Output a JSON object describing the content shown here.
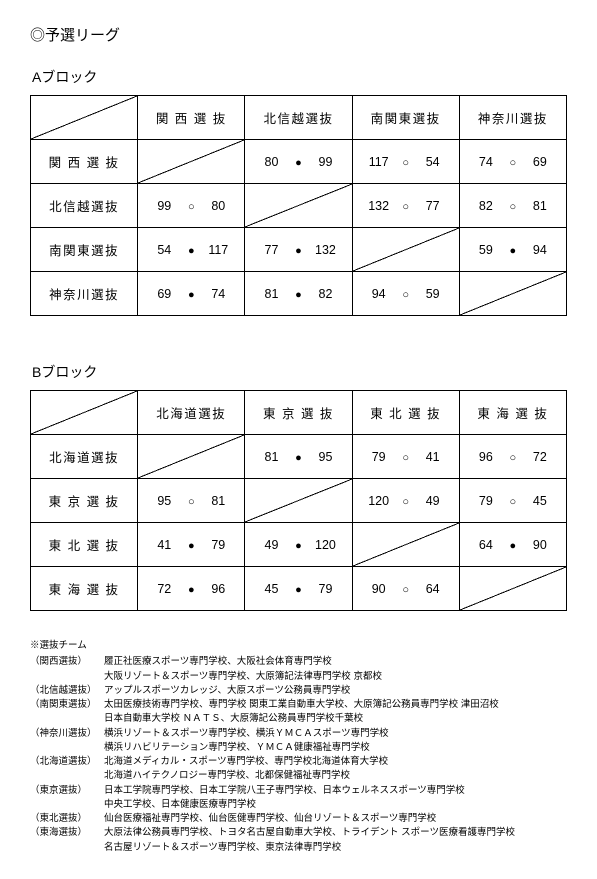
{
  "title": "◎予選リーグ",
  "blocks": [
    {
      "title": "Aブロック",
      "teams": [
        "関 西 選 抜",
        "北信越選抜",
        "南関東選抜",
        "神奈川選抜"
      ],
      "cells": [
        [
          null,
          {
            "a": 80,
            "m": "filled",
            "b": 99
          },
          {
            "a": 117,
            "m": "open",
            "b": 54
          },
          {
            "a": 74,
            "m": "open",
            "b": 69
          }
        ],
        [
          {
            "a": 99,
            "m": "open",
            "b": 80
          },
          null,
          {
            "a": 132,
            "m": "open",
            "b": 77
          },
          {
            "a": 82,
            "m": "open",
            "b": 81
          }
        ],
        [
          {
            "a": 54,
            "m": "filled",
            "b": 117
          },
          {
            "a": 77,
            "m": "filled",
            "b": 132
          },
          null,
          {
            "a": 59,
            "m": "filled",
            "b": 94
          }
        ],
        [
          {
            "a": 69,
            "m": "filled",
            "b": 74
          },
          {
            "a": 81,
            "m": "filled",
            "b": 82
          },
          {
            "a": 94,
            "m": "open",
            "b": 59
          },
          null
        ]
      ]
    },
    {
      "title": "Bブロック",
      "teams": [
        "北海道選抜",
        "東 京 選 抜",
        "東 北 選 抜",
        "東 海 選 抜"
      ],
      "cells": [
        [
          null,
          {
            "a": 81,
            "m": "filled",
            "b": 95
          },
          {
            "a": 79,
            "m": "open",
            "b": 41
          },
          {
            "a": 96,
            "m": "open",
            "b": 72
          }
        ],
        [
          {
            "a": 95,
            "m": "open",
            "b": 81
          },
          null,
          {
            "a": 120,
            "m": "open",
            "b": 49
          },
          {
            "a": 79,
            "m": "open",
            "b": 45
          }
        ],
        [
          {
            "a": 41,
            "m": "filled",
            "b": 79
          },
          {
            "a": 49,
            "m": "filled",
            "b": 120
          },
          null,
          {
            "a": 64,
            "m": "filled",
            "b": 90
          }
        ],
        [
          {
            "a": 72,
            "m": "filled",
            "b": 96
          },
          {
            "a": 45,
            "m": "filled",
            "b": 79
          },
          {
            "a": 90,
            "m": "open",
            "b": 64
          },
          null
        ]
      ]
    }
  ],
  "footnotes": {
    "header": "※選抜チーム",
    "items": [
      {
        "tag": "（関西選抜）",
        "lines": [
          "履正社医療スポーツ専門学校、大阪社会体育専門学校",
          "大阪リゾート＆スポーツ専門学校、大原簿記法律専門学校 京都校"
        ]
      },
      {
        "tag": "（北信越選抜）",
        "lines": [
          "アップルスポーツカレッジ、大原スポーツ公務員専門学校"
        ]
      },
      {
        "tag": "（南関東選抜）",
        "lines": [
          "太田医療技術専門学校、専門学校 関東工業自動車大学校、大原簿記公務員専門学校 津田沼校",
          "日本自動車大学校 ＮＡＴＳ、大原簿記公務員専門学校千葉校"
        ]
      },
      {
        "tag": "（神奈川選抜）",
        "lines": [
          "横浜リゾート＆スポーツ専門学校、横浜ＹＭＣＡスポーツ専門学校",
          "横浜リハビリテーション専門学校、ＹＭＣＡ健康福祉専門学校"
        ]
      },
      {
        "tag": "（北海道選抜）",
        "lines": [
          "北海道メディカル・スポーツ専門学校、専門学校北海道体育大学校",
          "北海道ハイテクノロジー専門学校、北都保健福祉専門学校"
        ]
      },
      {
        "tag": "（東京選抜）",
        "lines": [
          "日本工学院専門学校、日本工学院八王子専門学校、日本ウェルネススポーツ専門学校",
          "中央工学校、日本健康医療専門学校"
        ]
      },
      {
        "tag": "（東北選抜）",
        "lines": [
          "仙台医療福祉専門学校、仙台医健専門学校、仙台リゾート＆スポーツ専門学校"
        ]
      },
      {
        "tag": "（東海選抜）",
        "lines": [
          "大原法律公務員専門学校、トヨタ名古屋自動車大学校、トライデント スポーツ医療看護専門学校",
          "名古屋リゾート＆スポーツ専門学校、東京法律専門学校"
        ]
      }
    ]
  }
}
